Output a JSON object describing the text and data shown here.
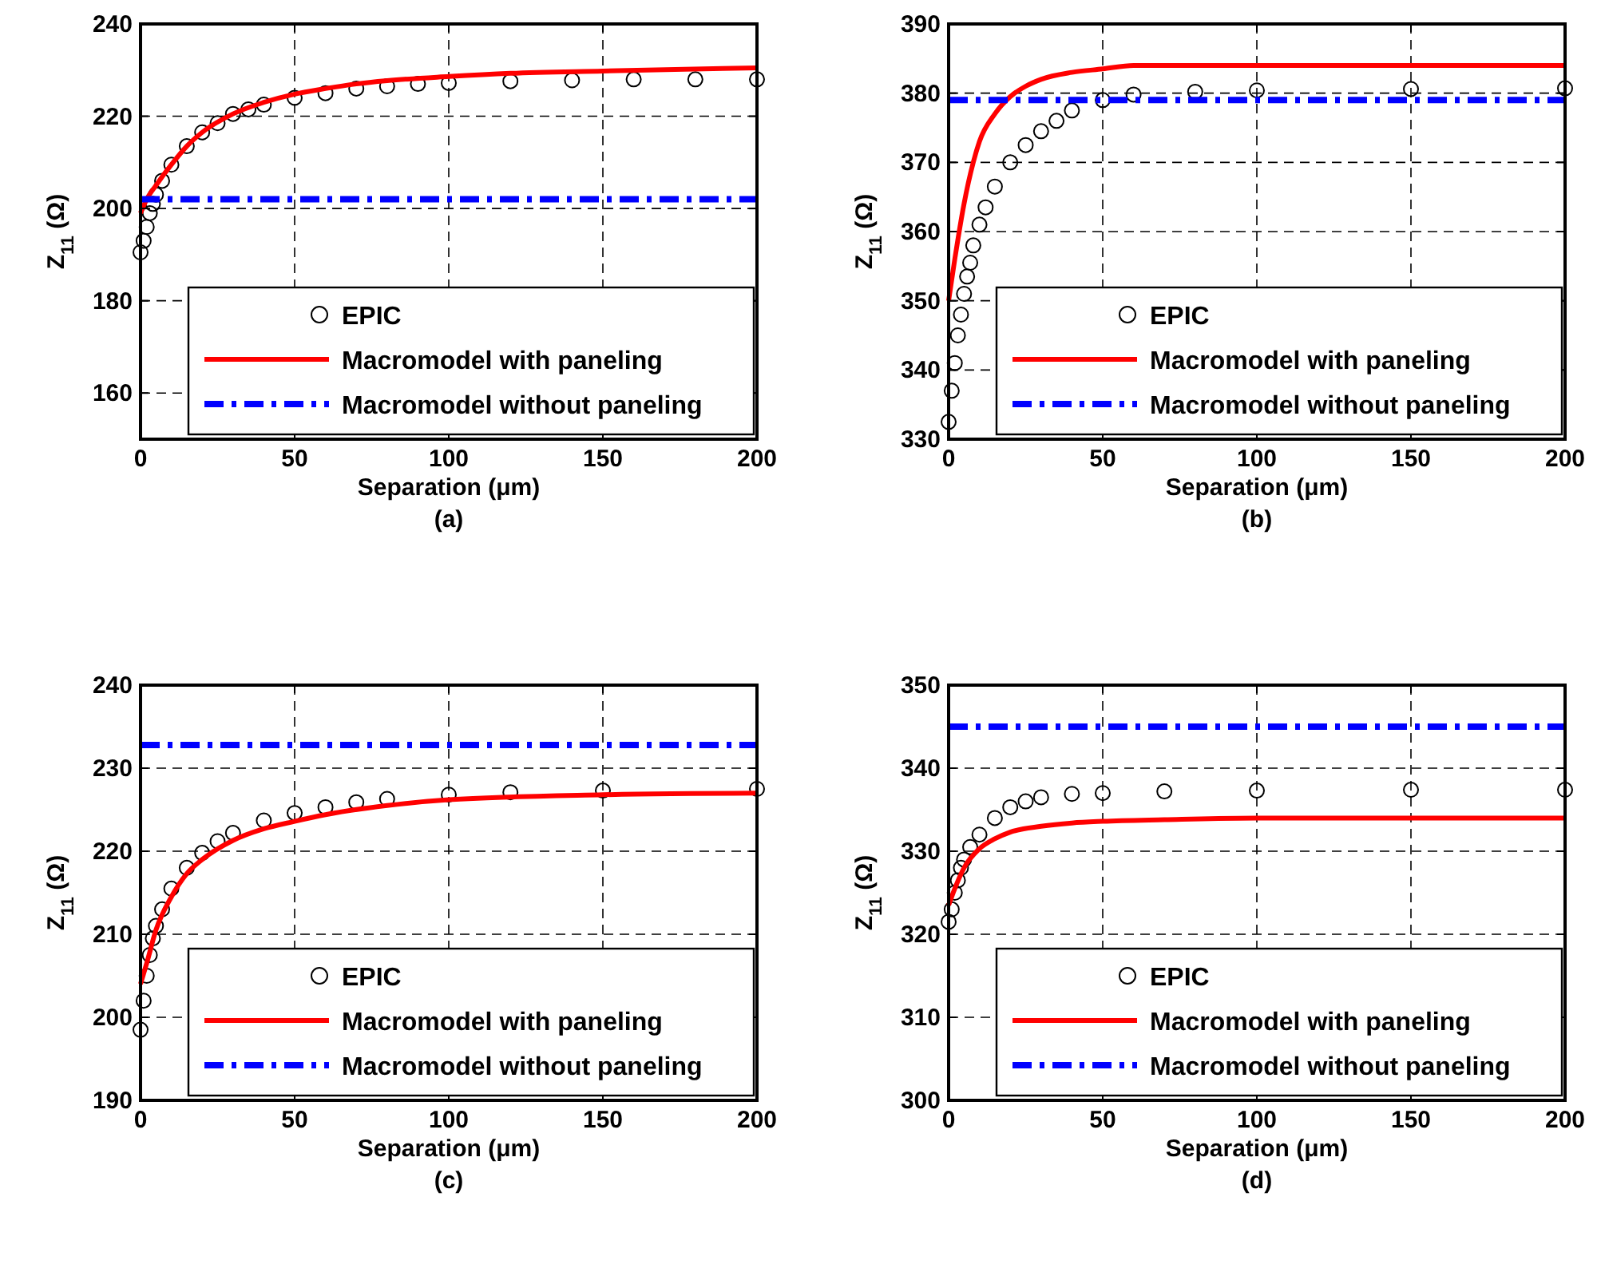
{
  "chart_data": [
    {
      "type": "line",
      "xlabel": "Separation (μm)",
      "ylabel": "Z$_{11}$ (Ω)",
      "annotations": [
        "(a)"
      ],
      "xlim": [
        0,
        200
      ],
      "xticks": [
        0,
        50,
        100,
        150,
        200
      ],
      "ylim": [
        150,
        240
      ],
      "yticks": [
        160,
        180,
        200,
        220,
        240
      ],
      "grid": true,
      "legend": "bottom right",
      "series": [
        {
          "name": "EPIC",
          "type": "scatter",
          "marker": "circle",
          "color": "#000000",
          "x": [
            0,
            1,
            2,
            3,
            4,
            5,
            7,
            10,
            15,
            20,
            25,
            30,
            35,
            40,
            50,
            60,
            70,
            80,
            90,
            100,
            120,
            140,
            160,
            180,
            200
          ],
          "values": [
            190.5,
            193,
            196,
            199,
            201,
            203,
            206,
            209.5,
            213.5,
            216.5,
            218.5,
            220.5,
            221.5,
            222.5,
            224,
            225,
            226,
            226.5,
            227,
            227.2,
            227.6,
            227.8,
            228,
            228,
            228
          ]
        },
        {
          "name": "Macromodel with paneling",
          "type": "line",
          "line_style": "solid",
          "color": "#ff0000",
          "x": [
            0,
            2,
            5,
            10,
            15,
            20,
            30,
            40,
            50,
            60,
            70,
            80,
            100,
            120,
            150,
            200
          ],
          "values": [
            199,
            202,
            205,
            209.5,
            213.5,
            216.5,
            220.5,
            223,
            224.8,
            226,
            227,
            227.7,
            228.6,
            229.3,
            229.8,
            230.5
          ]
        },
        {
          "name": "Macromodel without paneling",
          "type": "line",
          "line_style": "dashed",
          "color": "#0000ff",
          "x": [
            0,
            200
          ],
          "values": [
            202,
            202
          ]
        }
      ]
    },
    {
      "type": "line",
      "xlabel": "Separation (μm)",
      "ylabel": "Z$_{11}$ (Ω)",
      "annotations": [
        "(b)"
      ],
      "xlim": [
        0,
        200
      ],
      "xticks": [
        0,
        50,
        100,
        150,
        200
      ],
      "ylim": [
        330,
        390
      ],
      "yticks": [
        330,
        340,
        350,
        360,
        370,
        380,
        390
      ],
      "grid": true,
      "legend": "bottom right",
      "series": [
        {
          "name": "EPIC",
          "type": "scatter",
          "marker": "circle",
          "color": "#000000",
          "x": [
            0,
            1,
            2,
            3,
            4,
            5,
            6,
            7,
            8,
            10,
            12,
            15,
            20,
            25,
            30,
            35,
            40,
            50,
            60,
            80,
            100,
            150,
            200
          ],
          "values": [
            332.5,
            337,
            341,
            345,
            348,
            351,
            353.5,
            355.5,
            358,
            361,
            363.5,
            366.5,
            370,
            372.5,
            374.5,
            376,
            377.5,
            379,
            379.8,
            380.2,
            380.4,
            380.6,
            380.7
          ]
        },
        {
          "name": "Macromodel with paneling",
          "type": "line",
          "line_style": "solid",
          "color": "#ff0000",
          "x": [
            0,
            2,
            5,
            8,
            10,
            15,
            20,
            25,
            30,
            40,
            50,
            60,
            100,
            200
          ],
          "values": [
            350,
            356,
            364,
            370,
            373,
            377,
            379.5,
            381,
            382,
            383,
            383.5,
            384,
            384,
            384
          ]
        },
        {
          "name": "Macromodel without paneling",
          "type": "line",
          "line_style": "dashed",
          "color": "#0000ff",
          "x": [
            0,
            200
          ],
          "values": [
            379,
            379
          ]
        }
      ]
    },
    {
      "type": "line",
      "xlabel": "Separation (μm)",
      "ylabel": "Z$_{11}$ (Ω)",
      "annotations": [
        "(c)"
      ],
      "xlim": [
        0,
        200
      ],
      "xticks": [
        0,
        50,
        100,
        150,
        200
      ],
      "ylim": [
        190,
        240
      ],
      "yticks": [
        190,
        200,
        210,
        220,
        230,
        240
      ],
      "grid": true,
      "legend": "bottom right",
      "series": [
        {
          "name": "EPIC",
          "type": "scatter",
          "marker": "circle",
          "color": "#000000",
          "x": [
            0,
            1,
            2,
            3,
            4,
            5,
            7,
            10,
            15,
            20,
            25,
            30,
            40,
            50,
            60,
            70,
            80,
            100,
            120,
            150,
            200
          ],
          "values": [
            198.5,
            202,
            205,
            207.5,
            209.5,
            211,
            213,
            215.5,
            218,
            219.8,
            221.2,
            222.2,
            223.7,
            224.6,
            225.3,
            225.9,
            226.3,
            226.8,
            227.1,
            227.3,
            227.5
          ]
        },
        {
          "name": "Macromodel with paneling",
          "type": "line",
          "line_style": "solid",
          "color": "#ff0000",
          "x": [
            0,
            2,
            5,
            10,
            15,
            20,
            30,
            40,
            50,
            60,
            80,
            100,
            150,
            200
          ],
          "values": [
            204,
            206.5,
            210.5,
            214.5,
            217.3,
            219,
            221.3,
            222.7,
            223.6,
            224.4,
            225.5,
            226.2,
            226.8,
            227
          ]
        },
        {
          "name": "Macromodel without paneling",
          "type": "line",
          "line_style": "dashed",
          "color": "#0000ff",
          "x": [
            0,
            200
          ],
          "values": [
            232.8,
            232.8
          ]
        }
      ]
    },
    {
      "type": "line",
      "xlabel": "Separation (μm)",
      "ylabel": "Z$_{11}$ (Ω)",
      "annotations": [
        "(d)"
      ],
      "xlim": [
        0,
        200
      ],
      "xticks": [
        0,
        50,
        100,
        150,
        200
      ],
      "ylim": [
        300,
        350
      ],
      "yticks": [
        300,
        310,
        320,
        330,
        340,
        350
      ],
      "grid": true,
      "legend": "bottom right",
      "series": [
        {
          "name": "EPIC",
          "type": "scatter",
          "marker": "circle",
          "color": "#000000",
          "x": [
            0,
            1,
            2,
            3,
            4,
            5,
            7,
            10,
            15,
            20,
            25,
            30,
            40,
            50,
            70,
            100,
            150,
            200
          ],
          "values": [
            321.5,
            323,
            325,
            326.5,
            328,
            329,
            330.5,
            332,
            334,
            335.3,
            336,
            336.5,
            336.9,
            337,
            337.2,
            337.3,
            337.4,
            337.4
          ]
        },
        {
          "name": "Macromodel with paneling",
          "type": "line",
          "line_style": "solid",
          "color": "#ff0000",
          "x": [
            0,
            2,
            5,
            10,
            15,
            20,
            30,
            40,
            50,
            70,
            100,
            200
          ],
          "values": [
            323.5,
            325.5,
            328,
            330.3,
            331.5,
            332.3,
            333,
            333.4,
            333.6,
            333.8,
            334,
            334
          ]
        },
        {
          "name": "Macromodel without paneling",
          "type": "line",
          "line_style": "dashed",
          "color": "#0000ff",
          "x": [
            0,
            200
          ],
          "values": [
            345,
            345
          ]
        }
      ]
    }
  ]
}
